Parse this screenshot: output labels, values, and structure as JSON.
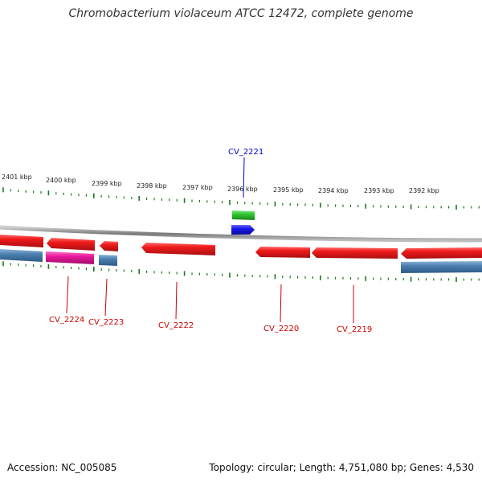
{
  "title": "Chromobacterium violaceum ATCC 12472, complete genome",
  "accession": "Accession: NC_005085",
  "summary": "Topology: circular; Length: 4,751,080 bp; Genes: 4,530",
  "colors": {
    "cds": "#e8121a",
    "cds_light": "#ff5a5a",
    "cds_dark": "#9b0d10",
    "steel": "#4a7fb0",
    "steel_light": "#8db5d8",
    "magenta": "#e8189a",
    "green": "#2ec52e",
    "blue": "#1717e8",
    "ticks": "#1a7a1a",
    "backbone": "#8a8a8a",
    "label_red": "#cc0000",
    "label_blue": "#0000cc"
  },
  "ruler": {
    "labels": [
      "2401 kbp",
      "2400 kbp",
      "2399 kbp",
      "2398 kbp",
      "2397 kbp",
      "2396 kbp",
      "2395 kbp",
      "2394 kbp",
      "2393 kbp",
      "2392 kbp"
    ]
  },
  "gene_labels": [
    {
      "name": "CV_2224",
      "color": "label_red"
    },
    {
      "name": "CV_2223",
      "color": "label_red"
    },
    {
      "name": "CV_2222",
      "color": "label_red"
    },
    {
      "name": "CV_2220",
      "color": "label_red"
    },
    {
      "name": "CV_2219",
      "color": "label_red"
    },
    {
      "name": "CV_2221",
      "color": "label_blue"
    }
  ]
}
